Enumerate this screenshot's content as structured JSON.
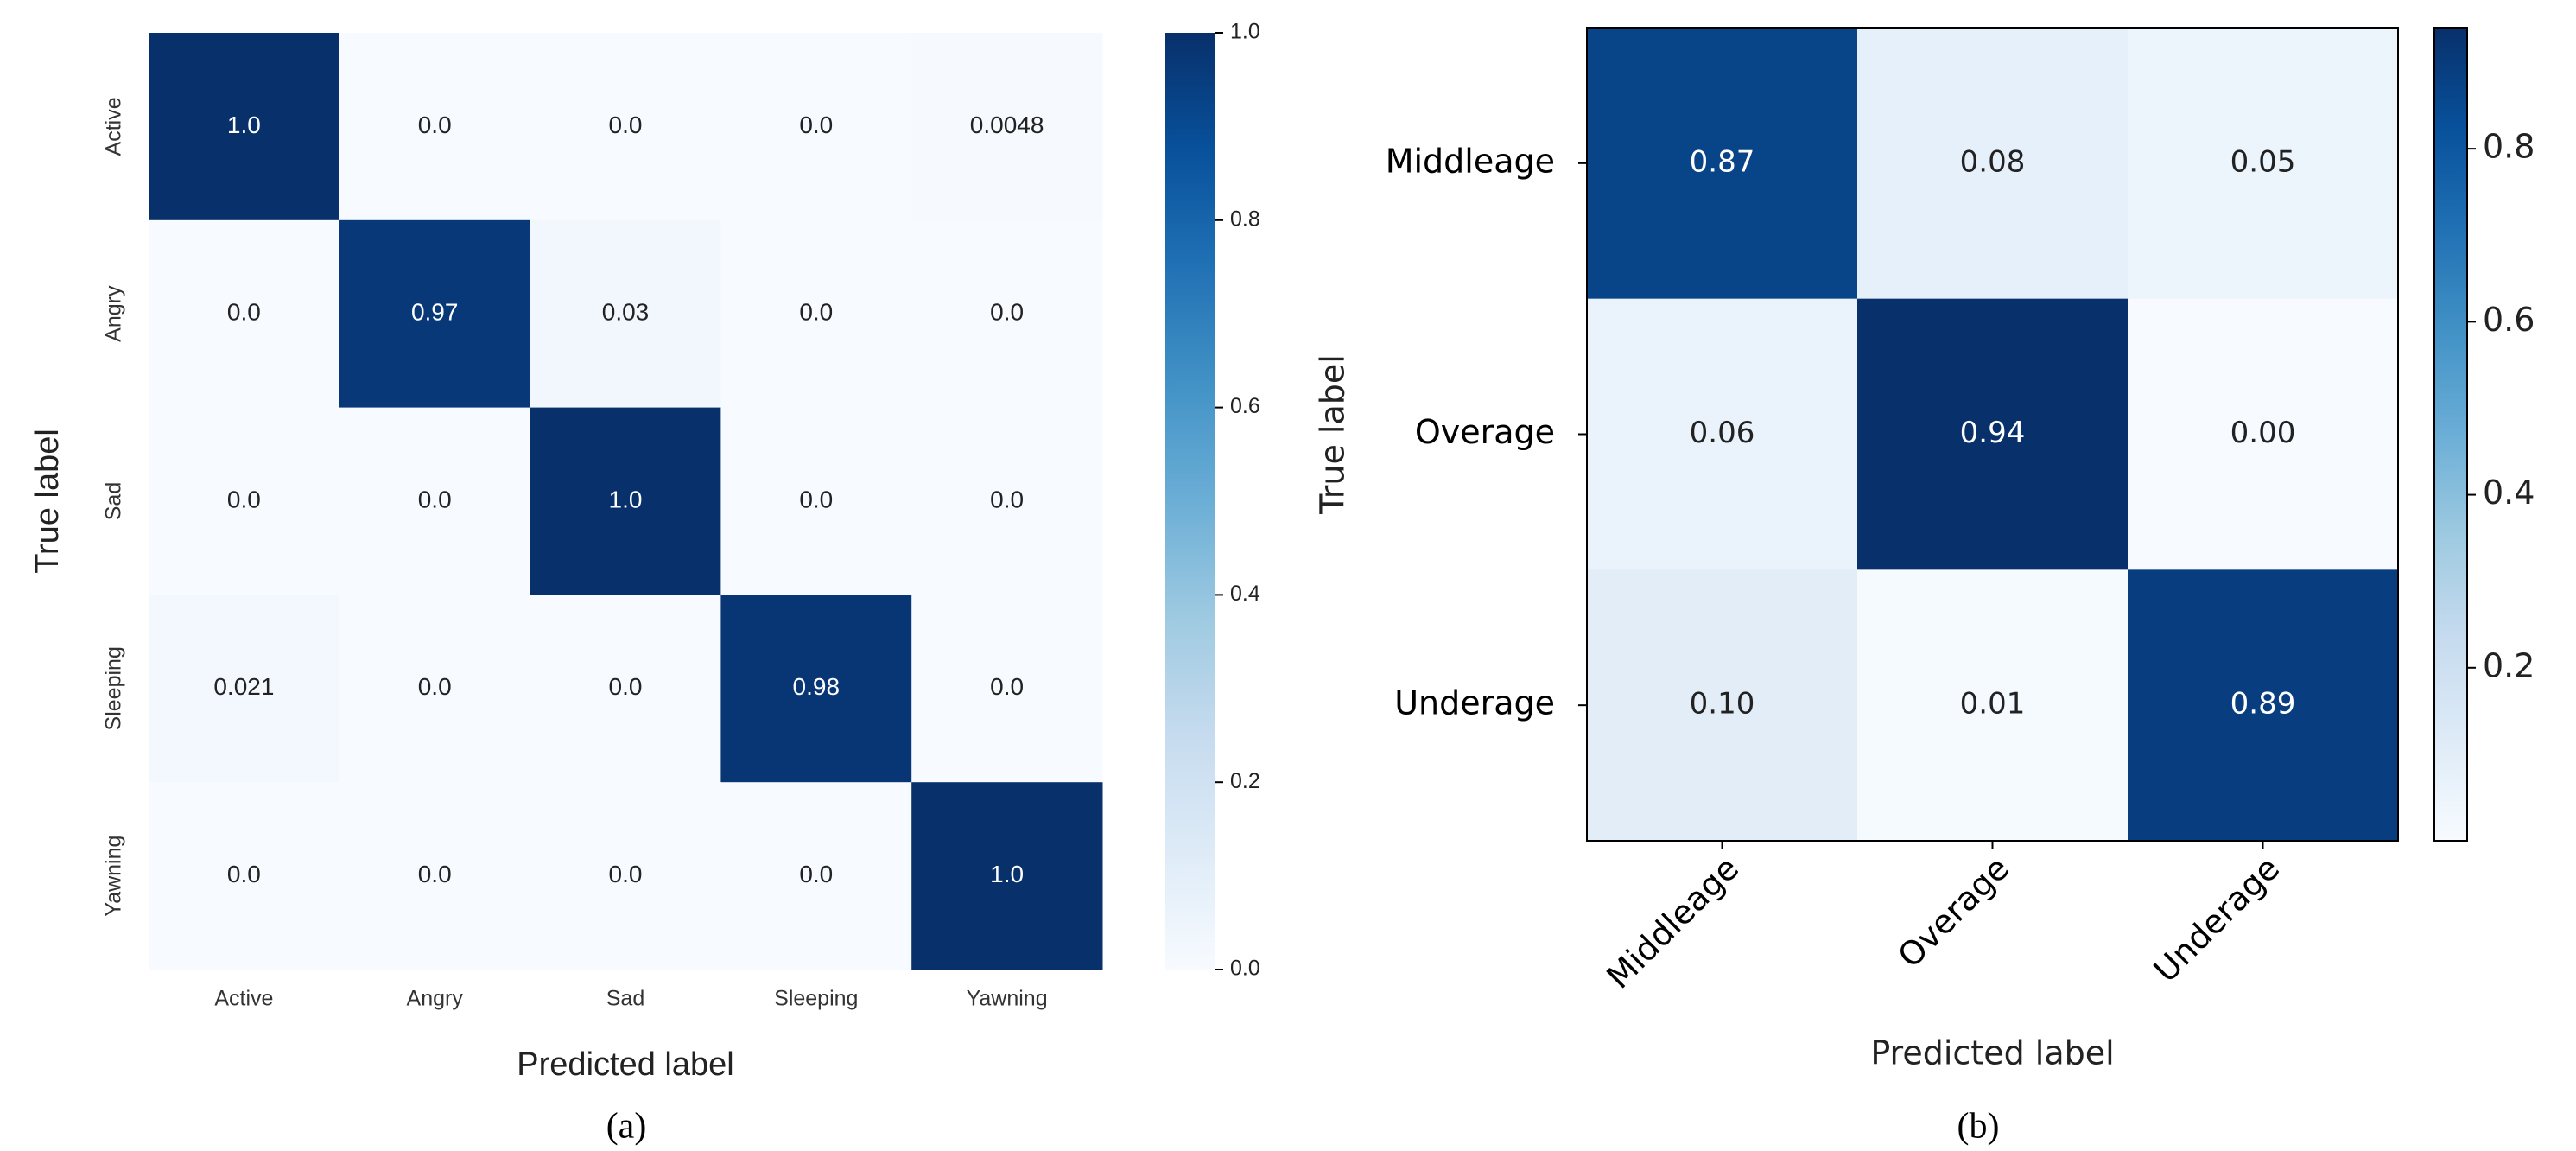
{
  "chart_data": [
    {
      "type": "heatmap",
      "caption": "(a)",
      "x_label": "Predicted label",
      "y_label": "True label",
      "x_categories": [
        "Active",
        "Angry",
        "Sad",
        "Sleeping",
        "Yawning"
      ],
      "y_categories": [
        "Active",
        "Angry",
        "Sad",
        "Sleeping",
        "Yawning"
      ],
      "values": [
        [
          1,
          0,
          0,
          0,
          0.0048
        ],
        [
          0,
          0.97,
          0.03,
          0,
          0
        ],
        [
          0,
          0,
          1,
          0,
          0
        ],
        [
          0.021,
          0,
          0,
          0.98,
          0
        ],
        [
          0,
          0,
          0,
          0,
          1
        ]
      ],
      "value_labels": [
        [
          "1.0",
          "0.0",
          "0.0",
          "0.0",
          "0.0048"
        ],
        [
          "0.0",
          "0.97",
          "0.03",
          "0.0",
          "0.0"
        ],
        [
          "0.0",
          "0.0",
          "1.0",
          "0.0",
          "0.0"
        ],
        [
          "0.021",
          "0.0",
          "0.0",
          "0.98",
          "0.0"
        ],
        [
          "0.0",
          "0.0",
          "0.0",
          "0.0",
          "1.0"
        ]
      ],
      "colormap": "Blues",
      "zlim": [
        0,
        1
      ],
      "zticks": [
        {
          "value": 0,
          "label": "0.0"
        },
        0.2,
        0.4,
        0.6,
        0.8,
        {
          "value": 1,
          "label": "1.0"
        }
      ]
    },
    {
      "type": "heatmap",
      "caption": "(b)",
      "x_label": "Predicted label",
      "y_label": "True label",
      "x_categories": [
        "Middleage",
        "Overage",
        "Underage"
      ],
      "y_categories": [
        "Middleage",
        "Overage",
        "Underage"
      ],
      "values": [
        [
          0.87,
          0.08,
          0.05
        ],
        [
          0.06,
          0.94,
          0
        ],
        [
          0.1,
          0.01,
          0.89
        ]
      ],
      "value_labels": [
        [
          "0.87",
          "0.08",
          "0.05"
        ],
        [
          "0.06",
          "0.94",
          "0.00"
        ],
        [
          "0.10",
          "0.01",
          "0.89"
        ]
      ],
      "colormap": "Blues",
      "zlim": [
        0,
        0.94
      ],
      "zticks": [
        0.2,
        0.4,
        0.6,
        0.8
      ]
    }
  ]
}
